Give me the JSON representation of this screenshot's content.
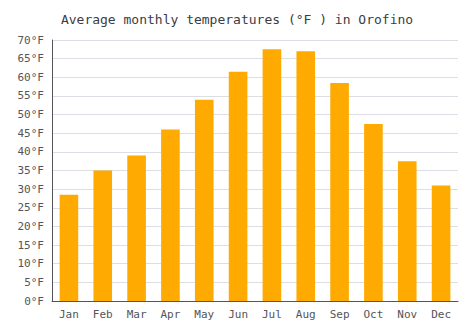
{
  "chart_data": {
    "type": "bar",
    "title": "Average monthly temperatures (°F ) in Orofino",
    "categories": [
      "Jan",
      "Feb",
      "Mar",
      "Apr",
      "May",
      "Jun",
      "Jul",
      "Aug",
      "Sep",
      "Oct",
      "Nov",
      "Dec"
    ],
    "values": [
      28.5,
      35.0,
      39.0,
      46.0,
      54.0,
      61.5,
      67.5,
      67.0,
      58.5,
      47.5,
      37.5,
      31.0
    ],
    "color": "#FFAA00",
    "ylim": [
      0,
      70
    ],
    "yticks": [
      {
        "value": 0,
        "label": "0°F"
      },
      {
        "value": 5,
        "label": "5°F"
      },
      {
        "value": 10,
        "label": "10°F"
      },
      {
        "value": 15,
        "label": "15°F"
      },
      {
        "value": 20,
        "label": "20°F"
      },
      {
        "value": 25,
        "label": "25°F"
      },
      {
        "value": 30,
        "label": "30°F"
      },
      {
        "value": 35,
        "label": "35°F"
      },
      {
        "value": 40,
        "label": "40°F"
      },
      {
        "value": 45,
        "label": "45°F"
      },
      {
        "value": 50,
        "label": "50°F"
      },
      {
        "value": 55,
        "label": "55°F"
      },
      {
        "value": 60,
        "label": "60°F"
      },
      {
        "value": 65,
        "label": "65°F"
      },
      {
        "value": 70,
        "label": "70°F"
      }
    ],
    "grid": true
  }
}
